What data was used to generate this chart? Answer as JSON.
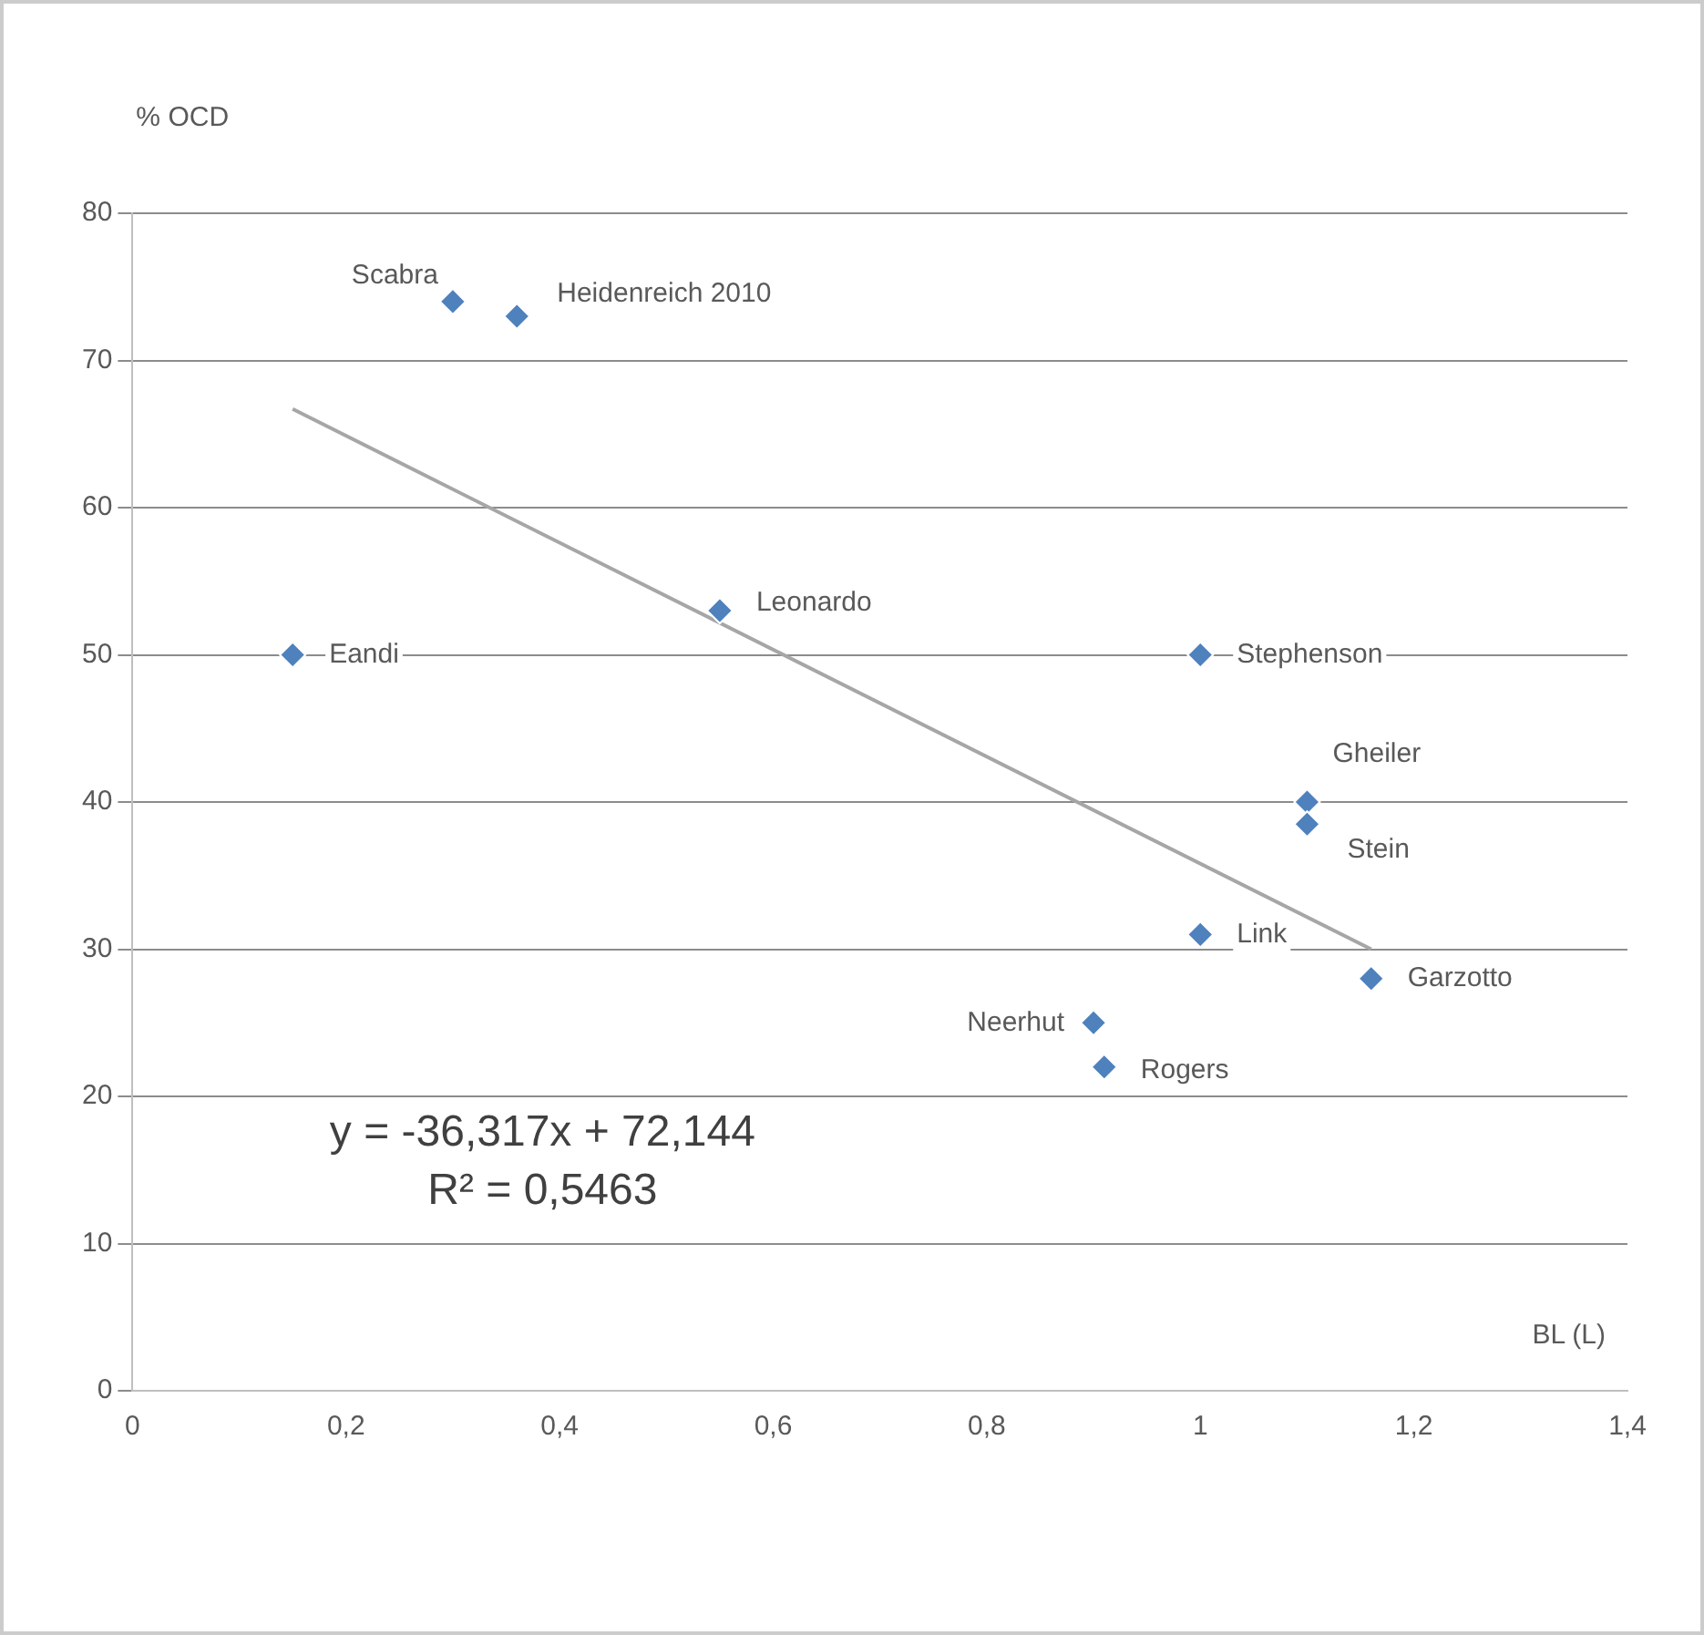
{
  "chart_data": {
    "type": "scatter",
    "xlabel": "BL (L)",
    "ylabel": "% OCD",
    "series": [
      {
        "marker": "diamond",
        "color": "#4f81bd",
        "x": [
          0.3,
          0.36,
          0.15,
          0.55,
          1.0,
          1.1,
          1.1,
          1.0,
          1.16,
          0.9,
          0.91
        ],
        "values": [
          74,
          73,
          50,
          53,
          50,
          40,
          38.5,
          31,
          28,
          25,
          22
        ]
      },
      {
        "type": "line",
        "color": "#a6a6a6",
        "x": [
          0.15,
          1.16
        ],
        "values": [
          66.7,
          30.0
        ]
      }
    ],
    "grid": "y",
    "legend": false,
    "xlim": [
      0,
      1.4
    ],
    "xticks": [
      0,
      {
        "value": 0.2,
        "label": "0,2"
      },
      {
        "value": 0.4,
        "label": "0,4"
      },
      {
        "value": 0.6,
        "label": "0,6"
      },
      {
        "value": 0.8,
        "label": "0,8"
      },
      1,
      {
        "value": 1.2,
        "label": "1,2"
      },
      {
        "value": 1.4,
        "label": "1,4"
      }
    ],
    "ylim": [
      0,
      80
    ],
    "yticks": [
      0,
      10,
      20,
      30,
      40,
      50,
      60,
      70,
      80
    ],
    "annotations": [
      {
        "text": "Scabra",
        "x": 0.3,
        "y": 74
      },
      {
        "text": "Heidenreich 2010",
        "x": 0.36,
        "y": 73
      },
      {
        "text": "Eandi",
        "x": 0.15,
        "y": 50
      },
      {
        "text": "Leonardo",
        "x": 0.55,
        "y": 53
      },
      {
        "text": "Stephenson",
        "x": 1.0,
        "y": 50
      },
      {
        "text": "Gheiler",
        "x": 1.1,
        "y": 40
      },
      {
        "text": "Stein",
        "x": 1.1,
        "y": 38.5
      },
      {
        "text": "Link",
        "x": 1.0,
        "y": 31
      },
      {
        "text": "Garzotto",
        "x": 1.16,
        "y": 28
      },
      {
        "text": "Neerhut",
        "x": 0.9,
        "y": 25
      },
      {
        "text": "Rogers",
        "x": 0.91,
        "y": 22
      },
      "y = -36,317x + 72,144",
      "R² = 0,5463"
    ]
  }
}
